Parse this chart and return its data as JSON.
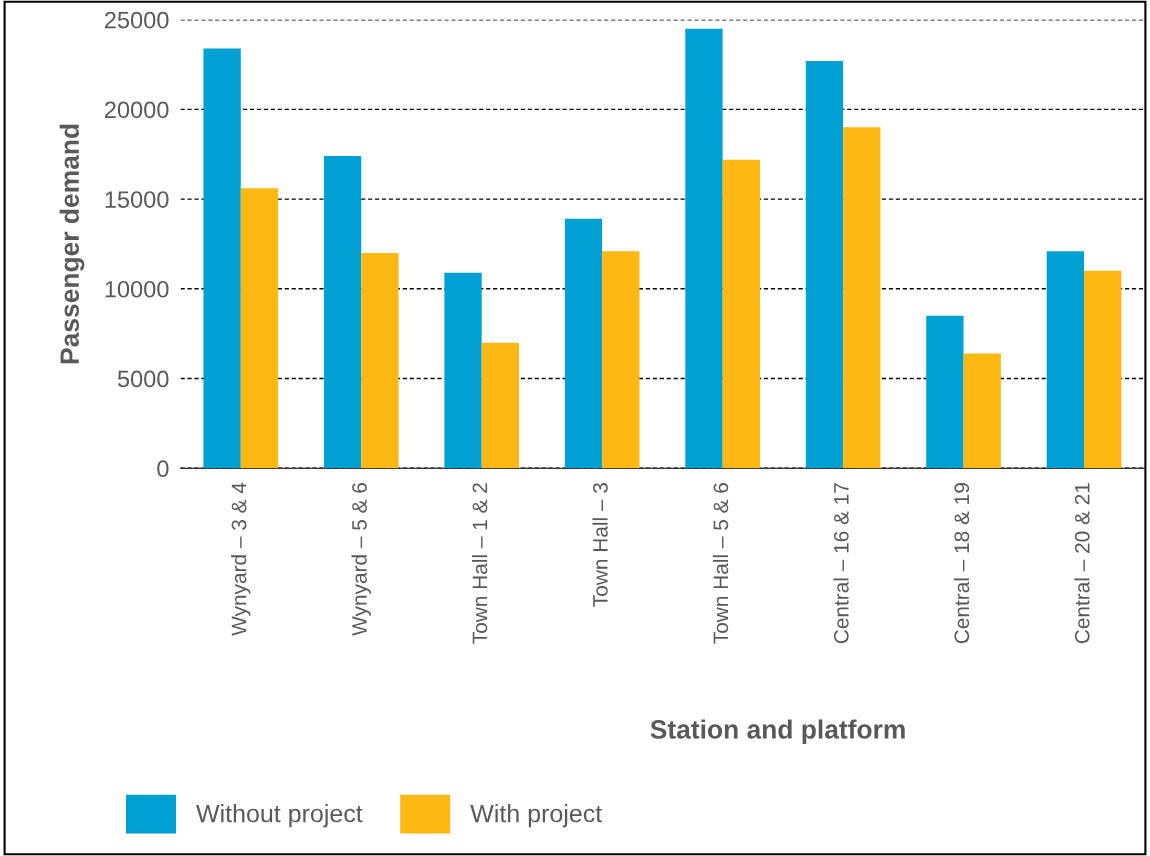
{
  "chart_data": {
    "type": "bar",
    "xlabel": "Station and platform",
    "ylabel": "Passenger demand",
    "categories": [
      "Wynyard – 3 & 4",
      "Wynyard – 5 & 6",
      "Town Hall – 1 & 2",
      "Town Hall – 3",
      "Town Hall – 5 & 6",
      "Central – 16 & 17",
      "Central – 18 & 19",
      "Central – 20 & 21"
    ],
    "series": [
      {
        "name": "Without project",
        "color": "#00a0d2",
        "values": [
          23400,
          17400,
          10900,
          13900,
          24500,
          22700,
          8500,
          12100
        ]
      },
      {
        "name": "With project",
        "color": "#fdb813",
        "values": [
          15600,
          12000,
          7000,
          12100,
          17200,
          19000,
          6400,
          11000
        ]
      }
    ],
    "ylim": [
      0,
      25000
    ],
    "yticks": [
      0,
      5000,
      10000,
      15000,
      20000,
      25000
    ],
    "grid": "y",
    "legend": "bottom left"
  }
}
